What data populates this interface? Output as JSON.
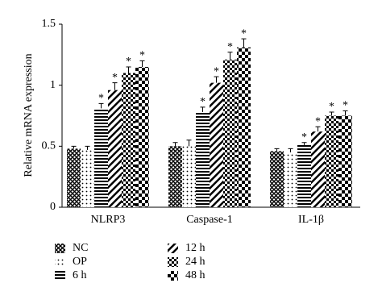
{
  "chart_data": {
    "type": "bar",
    "y_label": "Relative mRNA expression",
    "categories": [
      "NLRP3",
      "Caspase-1",
      "IL-1β"
    ],
    "ylim": [
      0,
      1.5
    ],
    "yticks": [
      0,
      0.5,
      1,
      1.5
    ],
    "series": [
      {
        "name": "NC",
        "color": "#000000",
        "pattern": "crosshatch",
        "values": [
          0.48,
          0.5,
          0.46
        ],
        "errors": [
          0.02,
          0.03,
          0.02
        ]
      },
      {
        "name": "OP",
        "color": "#000000",
        "pattern": "dots",
        "values": [
          0.47,
          0.5,
          0.45
        ],
        "errors": [
          0.03,
          0.05,
          0.03
        ]
      },
      {
        "name": "6 h",
        "color": "#000000",
        "pattern": "hlines",
        "values": [
          0.81,
          0.78,
          0.51
        ],
        "errors": [
          0.04,
          0.04,
          0.02
        ],
        "significance": [
          "*",
          "*",
          "*"
        ]
      },
      {
        "name": "12 h",
        "color": "#000000",
        "pattern": "diagonal",
        "values": [
          0.96,
          1.02,
          0.62
        ],
        "errors": [
          0.06,
          0.05,
          0.04
        ],
        "significance": [
          "*",
          "*",
          "*"
        ]
      },
      {
        "name": "24 h",
        "color": "#000000",
        "pattern": "checker",
        "values": [
          1.1,
          1.21,
          0.75
        ],
        "errors": [
          0.05,
          0.06,
          0.03
        ],
        "significance": [
          "*",
          "*",
          "*"
        ]
      },
      {
        "name": "48 h",
        "color": "#000000",
        "pattern": "bigchecker",
        "values": [
          1.15,
          1.31,
          0.75
        ],
        "errors": [
          0.05,
          0.07,
          0.04
        ],
        "significance": [
          "*",
          "*",
          "*"
        ]
      }
    ]
  }
}
